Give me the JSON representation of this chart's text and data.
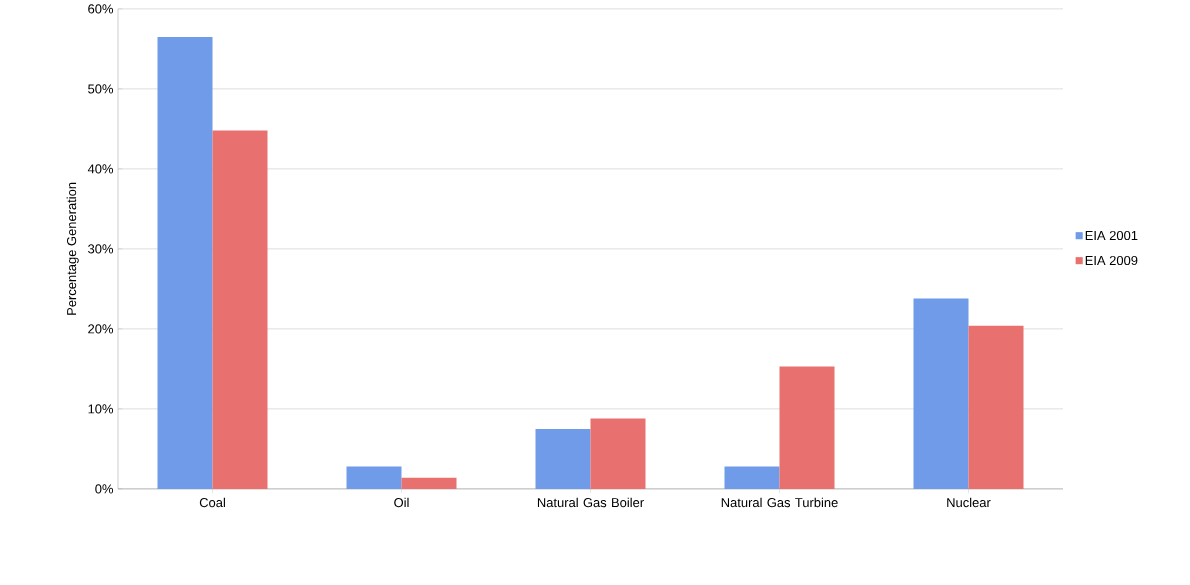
{
  "chart_data": {
    "type": "bar",
    "ylabel": "Percentage Generation",
    "categories": [
      "Coal",
      "Oil",
      "Natural Gas Boiler",
      "Natural Gas Turbine",
      "Nuclear"
    ],
    "series": [
      {
        "name": "EIA 2001",
        "color": "#6f9be8",
        "values": [
          56.5,
          2.8,
          7.5,
          2.8,
          23.8
        ]
      },
      {
        "name": "EIA 2009",
        "color": "#e8706e",
        "values": [
          44.8,
          1.4,
          8.8,
          15.3,
          20.4
        ]
      }
    ],
    "ylim": [
      0,
      60
    ],
    "yticks": [
      {
        "value": 0,
        "label": "0%"
      },
      {
        "value": 10,
        "label": "10%"
      },
      {
        "value": 20,
        "label": "20%"
      },
      {
        "value": 30,
        "label": "30%"
      },
      {
        "value": 40,
        "label": "40%"
      },
      {
        "value": 50,
        "label": "50%"
      },
      {
        "value": 60,
        "label": "60%"
      }
    ],
    "grid": "y",
    "legend": "right"
  }
}
